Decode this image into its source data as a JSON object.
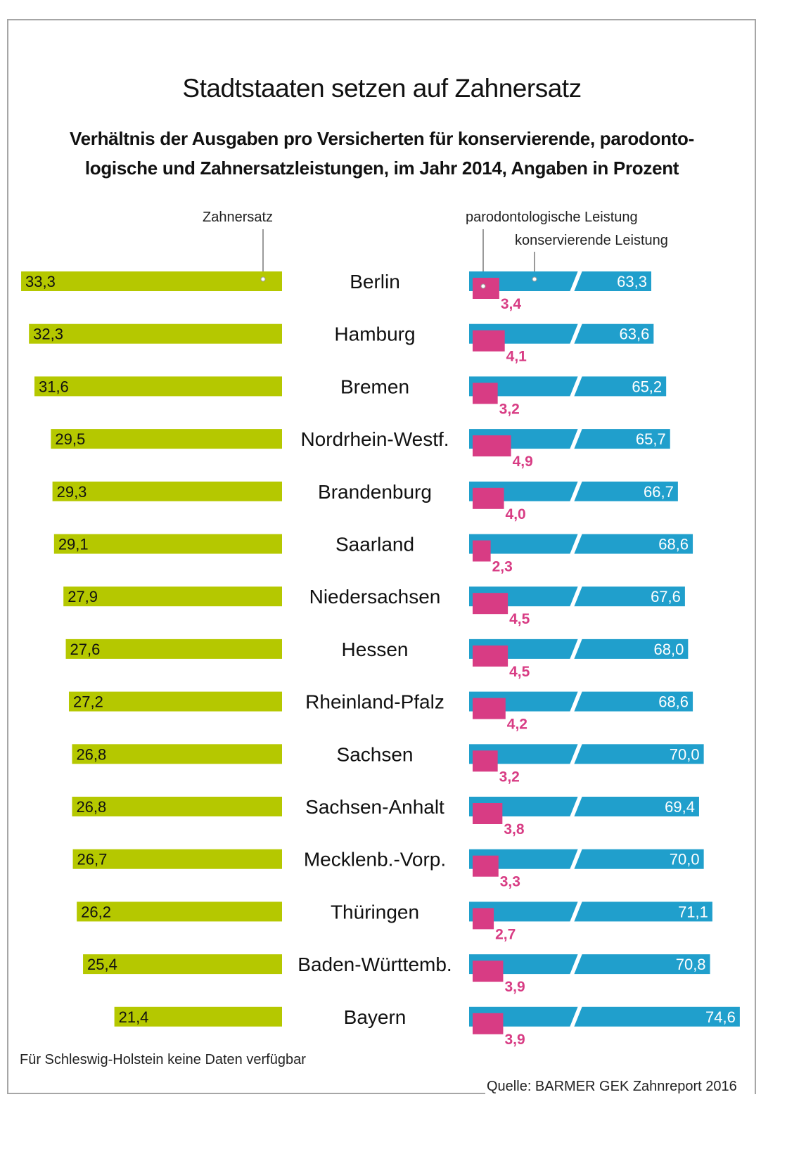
{
  "chart_data": {
    "type": "bar",
    "title": "Stadtstaaten setzen auf Zahnersatz",
    "subtitle_lines": [
      "Verhältnis der Ausgaben pro Versicherten für konservierende, parodonto-",
      "logische und Zahnersatzleistungen, im Jahr 2014, Angaben in Prozent"
    ],
    "unit": "Prozent",
    "decimal_separator": ",",
    "categories": [
      "Berlin",
      "Hamburg",
      "Bremen",
      "Nordrhein-Westf.",
      "Brandenburg",
      "Saarland",
      "Niedersachsen",
      "Hessen",
      "Rheinland-Pfalz",
      "Sachsen",
      "Sachsen-Anhalt",
      "Mecklenb.-Vorp.",
      "Thüringen",
      "Baden-Württemb.",
      "Bayern"
    ],
    "series": [
      {
        "name": "Zahnersatz",
        "color": "#b5c800",
        "direction": "left",
        "values": [
          33.3,
          32.3,
          31.6,
          29.5,
          29.3,
          29.1,
          27.9,
          27.6,
          27.2,
          26.8,
          26.8,
          26.7,
          26.2,
          25.4,
          21.4
        ]
      },
      {
        "name": "konservierende Leistung",
        "color": "#209fcc",
        "direction": "right",
        "axis_break": true,
        "values": [
          63.3,
          63.6,
          65.2,
          65.7,
          66.7,
          68.6,
          67.6,
          68.0,
          68.6,
          70.0,
          69.4,
          70.0,
          71.1,
          70.8,
          74.6
        ]
      },
      {
        "name": "parodontologische Leistung",
        "color": "#d83c84",
        "direction": "right",
        "values": [
          3.4,
          4.1,
          3.2,
          4.9,
          4.0,
          2.3,
          4.5,
          4.5,
          4.2,
          3.2,
          3.8,
          3.3,
          2.7,
          3.9,
          3.9
        ]
      }
    ],
    "legend": {
      "zahnersatz": "Zahnersatz",
      "parodontologisch": "parodontologische Leistung",
      "konservierend": "konservierende Leistung"
    },
    "colors": {
      "zahnersatz": "#b5c800",
      "konservierend": "#209fcc",
      "parodontologisch": "#d83c84",
      "frame": "#a6a6a6"
    },
    "note": "Für Schleswig-Holstein keine Daten verfügbar",
    "source": "Quelle: BARMER GEK Zahnreport 2016"
  }
}
